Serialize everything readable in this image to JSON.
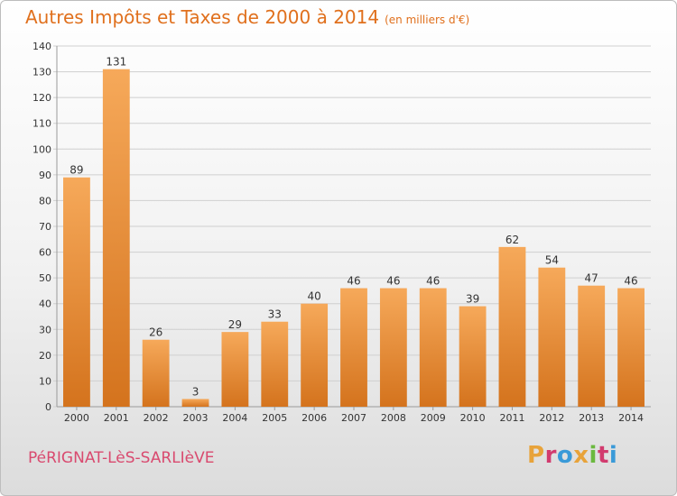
{
  "header": {
    "title": "Autres Impôts et Taxes de 2000 à 2014",
    "unit": "(en milliers d'€)"
  },
  "footer": {
    "commune": "PéRIGNAT-LèS-SARLIèVE",
    "logo_letters": [
      "P",
      "r",
      "o",
      "x",
      "i",
      "t",
      "i"
    ],
    "logo_colors": [
      "#e8a33a",
      "#d23b6e",
      "#3a9ad8",
      "#e8a33a",
      "#6bb93f",
      "#d23b6e",
      "#3a9ad8"
    ]
  },
  "colors": {
    "bar_light": "#f6a95a",
    "bar_dark": "#d4731d",
    "grid": "#cfcfcf",
    "title": "#e0701d"
  },
  "chart_data": {
    "type": "bar",
    "title": "Autres Impôts et Taxes de 2000 à 2014",
    "subtitle": "(en milliers d'€)",
    "xlabel": "",
    "ylabel": "",
    "categories": [
      "2000",
      "2001",
      "2002",
      "2003",
      "2004",
      "2005",
      "2006",
      "2007",
      "2008",
      "2009",
      "2010",
      "2011",
      "2012",
      "2013",
      "2014"
    ],
    "values": [
      89,
      131,
      26,
      3,
      29,
      33,
      40,
      46,
      46,
      46,
      39,
      62,
      54,
      47,
      46
    ],
    "ylim": [
      0,
      140
    ],
    "yticks": [
      0,
      10,
      20,
      30,
      40,
      50,
      60,
      70,
      80,
      90,
      100,
      110,
      120,
      130,
      140
    ],
    "grid": true,
    "data_labels": true
  }
}
